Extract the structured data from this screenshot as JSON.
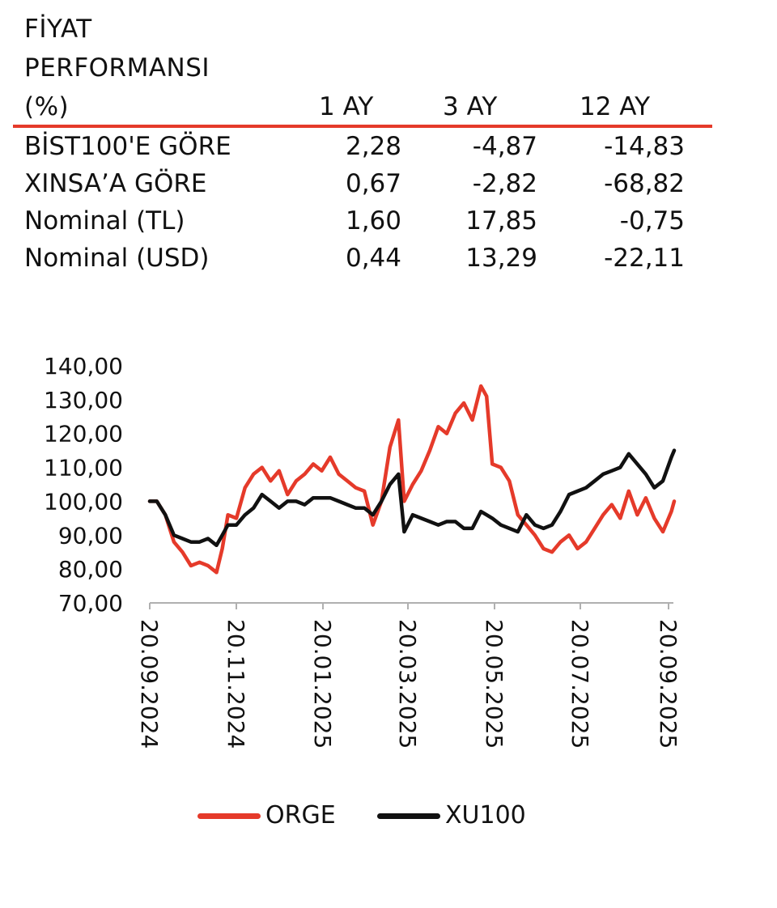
{
  "table": {
    "title_lines": [
      "FİYAT",
      "PERFORMANSI",
      "(%)"
    ],
    "columns": [
      "1 AY",
      "3 AY",
      "12 AY"
    ],
    "rows": [
      {
        "label": "BİST100'E GÖRE",
        "values": [
          "2,28",
          "-4,87",
          "-14,83"
        ]
      },
      {
        "label": "XINSA’A GÖRE",
        "values": [
          "0,67",
          "-2,82",
          "-68,82"
        ]
      },
      {
        "label": "Nominal (TL)",
        "values": [
          "1,60",
          "17,85",
          "-0,75"
        ]
      },
      {
        "label": "Nominal (USD)",
        "values": [
          "0,44",
          "13,29",
          "-22,11"
        ]
      }
    ],
    "accent_color": "#e53a2a"
  },
  "chart_data": {
    "type": "line",
    "title": "",
    "xlabel": "",
    "ylabel": "",
    "ylim": [
      70,
      140
    ],
    "y_ticks": [
      "140,00",
      "130,00",
      "120,00",
      "110,00",
      "100,00",
      "90,00",
      "80,00",
      "70,00"
    ],
    "x_ticks": [
      "20.09.2024",
      "20.11.2024",
      "20.01.2025",
      "20.03.2025",
      "20.05.2025",
      "20.07.2025",
      "20.09.2025"
    ],
    "x_unit": "date",
    "legend_position": "bottom",
    "grid": false,
    "series": [
      {
        "name": "ORGE",
        "color": "#e53a2a",
        "points": [
          [
            "2024-09-20",
            100
          ],
          [
            "2024-09-25",
            100
          ],
          [
            "2024-10-01",
            96
          ],
          [
            "2024-10-07",
            88
          ],
          [
            "2024-10-13",
            85
          ],
          [
            "2024-10-19",
            81
          ],
          [
            "2024-10-25",
            82
          ],
          [
            "2024-10-31",
            81
          ],
          [
            "2024-11-06",
            79
          ],
          [
            "2024-11-10",
            86
          ],
          [
            "2024-11-14",
            96
          ],
          [
            "2024-11-20",
            95
          ],
          [
            "2024-11-26",
            104
          ],
          [
            "2024-12-02",
            108
          ],
          [
            "2024-12-08",
            110
          ],
          [
            "2024-12-14",
            106
          ],
          [
            "2024-12-20",
            109
          ],
          [
            "2024-12-26",
            102
          ],
          [
            "2025-01-01",
            106
          ],
          [
            "2025-01-07",
            108
          ],
          [
            "2025-01-13",
            111
          ],
          [
            "2025-01-19",
            109
          ],
          [
            "2025-01-25",
            113
          ],
          [
            "2025-01-31",
            108
          ],
          [
            "2025-02-06",
            106
          ],
          [
            "2025-02-12",
            104
          ],
          [
            "2025-02-18",
            103
          ],
          [
            "2025-02-24",
            93
          ],
          [
            "2025-03-02",
            100
          ],
          [
            "2025-03-08",
            116
          ],
          [
            "2025-03-14",
            124
          ],
          [
            "2025-03-18",
            100
          ],
          [
            "2025-03-24",
            105
          ],
          [
            "2025-03-30",
            109
          ],
          [
            "2025-04-05",
            115
          ],
          [
            "2025-04-11",
            122
          ],
          [
            "2025-04-17",
            120
          ],
          [
            "2025-04-23",
            126
          ],
          [
            "2025-04-29",
            129
          ],
          [
            "2025-05-05",
            124
          ],
          [
            "2025-05-11",
            134
          ],
          [
            "2025-05-15",
            131
          ],
          [
            "2025-05-19",
            111
          ],
          [
            "2025-05-25",
            110
          ],
          [
            "2025-05-31",
            106
          ],
          [
            "2025-06-06",
            96
          ],
          [
            "2025-06-12",
            93
          ],
          [
            "2025-06-18",
            90
          ],
          [
            "2025-06-24",
            86
          ],
          [
            "2025-06-30",
            85
          ],
          [
            "2025-07-06",
            88
          ],
          [
            "2025-07-12",
            90
          ],
          [
            "2025-07-18",
            86
          ],
          [
            "2025-07-24",
            88
          ],
          [
            "2025-07-30",
            92
          ],
          [
            "2025-08-05",
            96
          ],
          [
            "2025-08-11",
            99
          ],
          [
            "2025-08-17",
            95
          ],
          [
            "2025-08-23",
            103
          ],
          [
            "2025-08-29",
            96
          ],
          [
            "2025-09-04",
            101
          ],
          [
            "2025-09-10",
            95
          ],
          [
            "2025-09-16",
            91
          ],
          [
            "2025-09-22",
            97
          ],
          [
            "2025-09-24",
            100
          ]
        ]
      },
      {
        "name": "XU100",
        "color": "#111111",
        "points": [
          [
            "2024-09-20",
            100
          ],
          [
            "2024-09-25",
            100
          ],
          [
            "2024-10-01",
            96
          ],
          [
            "2024-10-07",
            90
          ],
          [
            "2024-10-13",
            89
          ],
          [
            "2024-10-19",
            88
          ],
          [
            "2024-10-25",
            88
          ],
          [
            "2024-10-31",
            89
          ],
          [
            "2024-11-06",
            87
          ],
          [
            "2024-11-10",
            90
          ],
          [
            "2024-11-14",
            93
          ],
          [
            "2024-11-20",
            93
          ],
          [
            "2024-11-26",
            96
          ],
          [
            "2024-12-02",
            98
          ],
          [
            "2024-12-08",
            102
          ],
          [
            "2024-12-14",
            100
          ],
          [
            "2024-12-20",
            98
          ],
          [
            "2024-12-26",
            100
          ],
          [
            "2025-01-01",
            100
          ],
          [
            "2025-01-07",
            99
          ],
          [
            "2025-01-13",
            101
          ],
          [
            "2025-01-19",
            101
          ],
          [
            "2025-01-25",
            101
          ],
          [
            "2025-01-31",
            100
          ],
          [
            "2025-02-06",
            99
          ],
          [
            "2025-02-12",
            98
          ],
          [
            "2025-02-18",
            98
          ],
          [
            "2025-02-24",
            96
          ],
          [
            "2025-03-02",
            100
          ],
          [
            "2025-03-08",
            105
          ],
          [
            "2025-03-14",
            108
          ],
          [
            "2025-03-18",
            91
          ],
          [
            "2025-03-24",
            96
          ],
          [
            "2025-03-30",
            95
          ],
          [
            "2025-04-05",
            94
          ],
          [
            "2025-04-11",
            93
          ],
          [
            "2025-04-17",
            94
          ],
          [
            "2025-04-23",
            94
          ],
          [
            "2025-04-29",
            92
          ],
          [
            "2025-05-05",
            92
          ],
          [
            "2025-05-11",
            97
          ],
          [
            "2025-05-15",
            96
          ],
          [
            "2025-05-19",
            95
          ],
          [
            "2025-05-25",
            93
          ],
          [
            "2025-05-31",
            92
          ],
          [
            "2025-06-06",
            91
          ],
          [
            "2025-06-12",
            96
          ],
          [
            "2025-06-18",
            93
          ],
          [
            "2025-06-24",
            92
          ],
          [
            "2025-06-30",
            93
          ],
          [
            "2025-07-06",
            97
          ],
          [
            "2025-07-12",
            102
          ],
          [
            "2025-07-18",
            103
          ],
          [
            "2025-07-24",
            104
          ],
          [
            "2025-07-30",
            106
          ],
          [
            "2025-08-05",
            108
          ],
          [
            "2025-08-11",
            109
          ],
          [
            "2025-08-17",
            110
          ],
          [
            "2025-08-23",
            114
          ],
          [
            "2025-08-29",
            111
          ],
          [
            "2025-09-04",
            108
          ],
          [
            "2025-09-10",
            104
          ],
          [
            "2025-09-16",
            106
          ],
          [
            "2025-09-22",
            113
          ],
          [
            "2025-09-24",
            115
          ]
        ]
      }
    ]
  }
}
